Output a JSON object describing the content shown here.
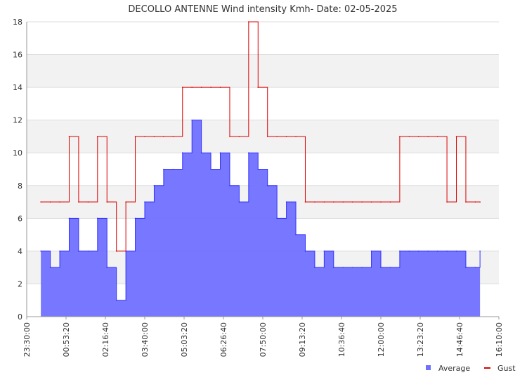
{
  "chart_data": {
    "type": "area",
    "title": "DECOLLO ANTENNE Wind intensity Kmh- Date: 02-05-2025",
    "xlabel": "",
    "ylabel": "",
    "xlim": [
      "23:30:00",
      "16:10:00"
    ],
    "ylim": [
      0,
      18
    ],
    "y_ticks": [
      0,
      2,
      4,
      6,
      8,
      10,
      12,
      14,
      16,
      18
    ],
    "x_ticks": [
      "23:30:00",
      "00:53:20",
      "02:16:40",
      "03:40:00",
      "05:03:20",
      "06:26:40",
      "07:50:00",
      "09:13:20",
      "10:36:40",
      "12:00:00",
      "13:23:20",
      "14:46:40",
      "16:10:00"
    ],
    "grid": true,
    "banded_background": true,
    "legend_position": "bottom-right",
    "series": [
      {
        "name": "Average",
        "color": "#3333ff",
        "fill": "#7070ff",
        "x": [
          "00:00",
          "00:20",
          "00:40",
          "01:00",
          "01:20",
          "01:40",
          "02:00",
          "02:20",
          "02:40",
          "03:00",
          "03:20",
          "03:40",
          "04:00",
          "04:20",
          "04:40",
          "05:00",
          "05:20",
          "05:40",
          "06:00",
          "06:20",
          "06:40",
          "07:00",
          "07:20",
          "07:40",
          "08:00",
          "08:20",
          "08:40",
          "09:00",
          "09:20",
          "09:40",
          "10:00",
          "10:20",
          "10:40",
          "11:00",
          "11:20",
          "11:40",
          "12:00",
          "12:20",
          "12:40",
          "13:00",
          "13:20",
          "13:40",
          "14:00",
          "14:20",
          "14:40",
          "15:00",
          "15:20",
          "15:30"
        ],
        "values": [
          4,
          3,
          4,
          6,
          4,
          4,
          6,
          3,
          1,
          4,
          6,
          7,
          8,
          9,
          9,
          10,
          12,
          10,
          9,
          10,
          8,
          7,
          10,
          9,
          8,
          6,
          7,
          5,
          4,
          3,
          4,
          3,
          3,
          3,
          3,
          4,
          3,
          3,
          4,
          4,
          4,
          4,
          4,
          4,
          4,
          3,
          3,
          4
        ]
      },
      {
        "name": "Gust",
        "color": "#dd0000",
        "x": [
          "00:00",
          "00:20",
          "00:40",
          "01:00",
          "01:20",
          "01:40",
          "02:00",
          "02:20",
          "02:40",
          "03:00",
          "03:20",
          "03:40",
          "04:00",
          "04:20",
          "04:40",
          "05:00",
          "05:20",
          "05:40",
          "06:00",
          "06:20",
          "06:40",
          "07:00",
          "07:20",
          "07:40",
          "08:00",
          "08:20",
          "08:40",
          "09:00",
          "09:20",
          "09:40",
          "10:00",
          "10:20",
          "10:40",
          "11:00",
          "11:20",
          "11:40",
          "12:00",
          "12:20",
          "12:40",
          "13:00",
          "13:20",
          "13:40",
          "14:00",
          "14:20",
          "14:40",
          "15:00",
          "15:20",
          "15:30"
        ],
        "values": [
          7,
          7,
          7,
          11,
          7,
          7,
          11,
          7,
          4,
          7,
          11,
          11,
          11,
          11,
          11,
          14,
          14,
          14,
          14,
          14,
          11,
          11,
          18,
          14,
          11,
          11,
          11,
          11,
          7,
          7,
          7,
          7,
          7,
          7,
          7,
          7,
          7,
          7,
          11,
          11,
          11,
          11,
          11,
          7,
          11,
          7,
          7,
          7
        ]
      }
    ]
  }
}
